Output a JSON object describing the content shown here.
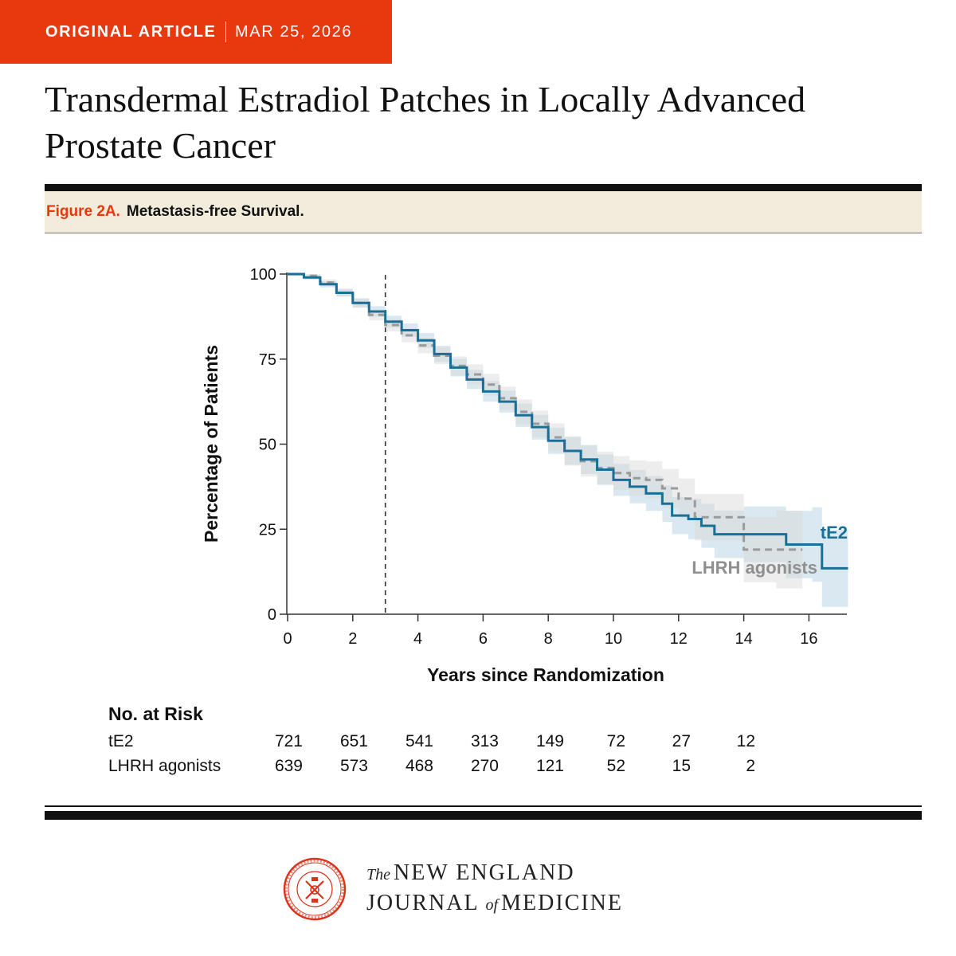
{
  "banner": {
    "article_type": "ORIGINAL ARTICLE",
    "date": "MAR 25, 2026"
  },
  "headline": "Transdermal Estradiol Patches in Locally Advanced Prostate Cancer",
  "figure": {
    "label": "Figure 2A.",
    "title": "Metastasis-free Survival."
  },
  "colors": {
    "accent": "#e8380d",
    "te2": "#1a6f96",
    "lhrh": "#9a9a9a",
    "band": "#f1ecdc"
  },
  "chart_data": {
    "type": "line",
    "xlabel": "Years since Randomization",
    "ylabel": "Percentage of Patients",
    "xlim": [
      0,
      17.2
    ],
    "ylim": [
      0,
      100
    ],
    "x_ticks": [
      0,
      2,
      4,
      6,
      8,
      10,
      12,
      14,
      16
    ],
    "y_ticks": [
      0,
      25,
      50,
      75,
      100
    ],
    "reference_line_x": 3,
    "series": [
      {
        "name": "tE2",
        "style": "solid",
        "x": [
          0,
          0.5,
          1,
          1.5,
          2,
          2.5,
          3,
          3.5,
          4,
          4.5,
          5,
          5.5,
          6,
          6.5,
          7,
          7.5,
          8,
          8.5,
          9,
          9.5,
          10,
          10.5,
          11,
          11.5,
          11.8,
          12.3,
          12.7,
          13.1,
          14,
          15.3,
          16.1,
          16.4,
          17.2
        ],
        "y": [
          100,
          99,
          97,
          94.5,
          91.5,
          89,
          86,
          83.5,
          80.5,
          76.5,
          72.5,
          69,
          65.5,
          62.5,
          58.5,
          55,
          51,
          48,
          45.5,
          42.5,
          39.5,
          37.5,
          35.5,
          32.5,
          29,
          28,
          26,
          23.5,
          23.5,
          20.5,
          20.5,
          13.5,
          13.5
        ]
      },
      {
        "name": "LHRH agonists",
        "style": "dashed",
        "x": [
          0,
          0.5,
          1,
          1.5,
          2,
          2.5,
          3,
          3.5,
          4,
          4.5,
          5,
          5.5,
          6,
          6.5,
          7,
          7.5,
          8,
          8.5,
          9,
          9.5,
          10,
          10.5,
          11,
          11.5,
          12,
          12.5,
          14,
          15,
          15.8
        ],
        "y": [
          100,
          99.5,
          97.5,
          94.5,
          91.5,
          88,
          85,
          82,
          79,
          76,
          73,
          70.5,
          67.5,
          63.5,
          59.5,
          56,
          52,
          48,
          45,
          43,
          41.5,
          40,
          39.5,
          37,
          34,
          28.5,
          19,
          19,
          19
        ]
      }
    ],
    "at_risk": {
      "title": "No. at Risk",
      "rows": [
        {
          "name": "tE2",
          "values": [
            "721",
            "651",
            "541",
            "313",
            "149",
            "72",
            "27",
            "12"
          ]
        },
        {
          "name": "LHRH agonists",
          "values": [
            "639",
            "573",
            "468",
            "270",
            "121",
            "52",
            "15",
            "2"
          ]
        }
      ]
    }
  },
  "publisher": {
    "the": "The",
    "line1": "NEW ENGLAND",
    "line2_a": "JOURNAL",
    "line2_of": "of",
    "line2_b": "MEDICINE"
  }
}
